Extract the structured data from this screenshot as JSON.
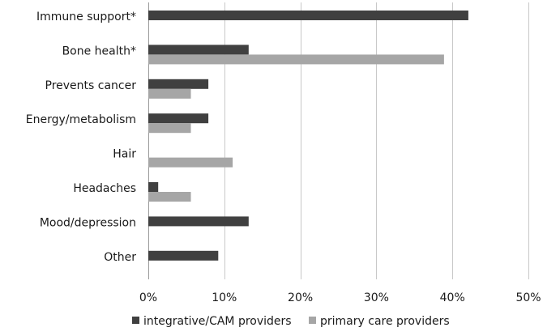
{
  "chart_data": {
    "type": "bar",
    "orientation": "horizontal",
    "categories": [
      "Immune support*",
      "Bone health*",
      "Prevents cancer",
      "Energy/metabolism",
      "Hair",
      "Headaches",
      "Mood/depression",
      "Other"
    ],
    "series": [
      {
        "name": "integrative/CAM providers",
        "color": "#404040",
        "values": [
          42.1,
          13.2,
          7.9,
          7.9,
          0,
          1.3,
          13.2,
          9.2
        ]
      },
      {
        "name": "primary care providers",
        "color": "#a6a6a6",
        "values": [
          0,
          38.9,
          5.6,
          5.6,
          11.1,
          5.6,
          0,
          0
        ]
      }
    ],
    "xlim": [
      0,
      50
    ],
    "xticks": [
      0,
      10,
      20,
      30,
      40,
      50
    ],
    "xtick_labels": [
      "0%",
      "10%",
      "20%",
      "30%",
      "40%",
      "50%"
    ],
    "grid": "vertical",
    "legend_position": "bottom"
  }
}
